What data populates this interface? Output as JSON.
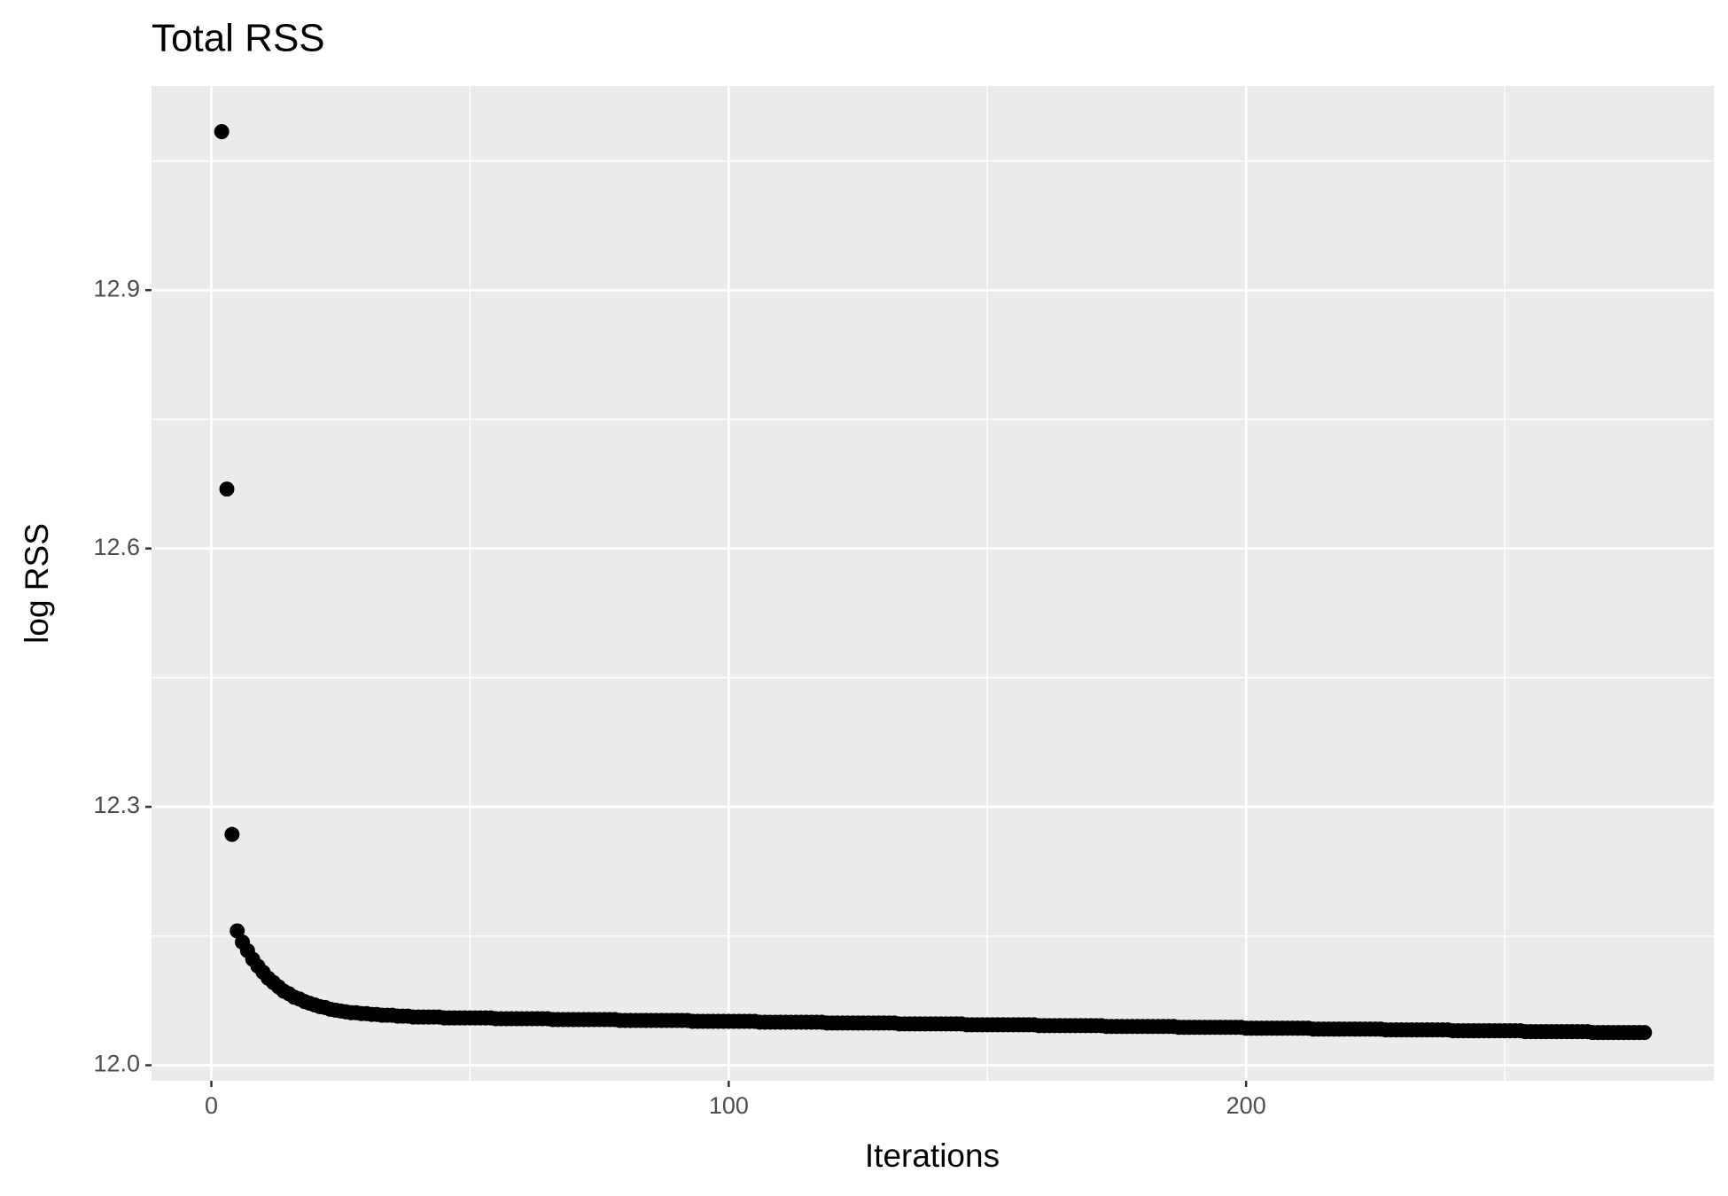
{
  "chart_data": {
    "type": "scatter",
    "title": "Total RSS",
    "x_label": "Iterations",
    "y_label": "log RSS",
    "color": "#000000",
    "panel_color": "#ebebeb",
    "grid": true,
    "xlim": [
      -11.56,
      290.4
    ],
    "ylim": [
      11.982,
      13.137
    ],
    "xticks": [
      0,
      100,
      200
    ],
    "yticks": [
      {
        "value": 12.0,
        "label": "12.0"
      },
      {
        "value": 12.3,
        "label": "12.3"
      },
      {
        "value": 12.6,
        "label": "12.6"
      },
      {
        "value": 12.9,
        "label": "12.9"
      }
    ],
    "minor_xticks": [
      50,
      150,
      250
    ],
    "minor_yticks": [
      12.15,
      12.45,
      12.75,
      13.05
    ],
    "x": [
      2,
      3,
      4,
      5,
      6,
      7,
      8,
      9,
      10,
      11,
      12,
      13,
      14,
      15,
      16,
      17,
      18,
      19,
      20,
      21,
      22,
      23,
      24,
      25,
      26,
      27,
      28,
      29,
      30,
      31,
      32,
      33,
      34,
      35,
      36,
      37,
      38,
      39,
      40,
      41,
      42,
      43,
      44,
      45,
      46,
      47,
      48,
      49,
      50,
      51,
      52,
      53,
      54,
      55,
      56,
      57,
      58,
      59,
      60,
      61,
      62,
      63,
      64,
      65,
      66,
      67,
      68,
      69,
      70,
      71,
      72,
      73,
      74,
      75,
      76,
      77,
      78,
      79,
      80,
      81,
      82,
      83,
      84,
      85,
      86,
      87,
      88,
      89,
      90,
      91,
      92,
      93,
      94,
      95,
      96,
      97,
      98,
      99,
      100,
      101,
      102,
      103,
      104,
      105,
      106,
      107,
      108,
      109,
      110,
      111,
      112,
      113,
      114,
      115,
      116,
      117,
      118,
      119,
      120,
      121,
      122,
      123,
      124,
      125,
      126,
      127,
      128,
      129,
      130,
      131,
      132,
      133,
      134,
      135,
      136,
      137,
      138,
      139,
      140,
      141,
      142,
      143,
      144,
      145,
      146,
      147,
      148,
      149,
      150,
      151,
      152,
      153,
      154,
      155,
      156,
      157,
      158,
      159,
      160,
      161,
      162,
      163,
      164,
      165,
      166,
      167,
      168,
      169,
      170,
      171,
      172,
      173,
      174,
      175,
      176,
      177,
      178,
      179,
      180,
      181,
      182,
      183,
      184,
      185,
      186,
      187,
      188,
      189,
      190,
      191,
      192,
      193,
      194,
      195,
      196,
      197,
      198,
      199,
      200,
      201,
      202,
      203,
      204,
      205,
      206,
      207,
      208,
      209,
      210,
      211,
      212,
      213,
      214,
      215,
      216,
      217,
      218,
      219,
      220,
      221,
      222,
      223,
      224,
      225,
      226,
      227,
      228,
      229,
      230,
      231,
      232,
      233,
      234,
      235,
      236,
      237,
      238,
      239,
      240,
      241,
      242,
      243,
      244,
      245,
      246,
      247,
      248,
      249,
      250,
      251,
      252,
      253,
      254,
      255,
      256,
      257,
      258,
      259,
      260,
      261,
      262,
      263,
      264,
      265,
      266,
      267,
      268,
      269,
      270,
      271,
      272,
      273,
      274,
      275,
      276,
      277
    ],
    "values": [
      13.084,
      12.669,
      12.268,
      12.156,
      12.143,
      12.133,
      12.123,
      12.115,
      12.108,
      12.101,
      12.096,
      12.091,
      12.086,
      12.083,
      12.079,
      12.077,
      12.074,
      12.072,
      12.07,
      12.068,
      12.067,
      12.065,
      12.064,
      12.063,
      12.062,
      12.061,
      12.061,
      12.06,
      12.06,
      12.059,
      12.059,
      12.058,
      12.058,
      12.058,
      12.057,
      12.057,
      12.057,
      12.056,
      12.056,
      12.056,
      12.056,
      12.056,
      12.056,
      12.055,
      12.055,
      12.055,
      12.055,
      12.055,
      12.055,
      12.055,
      12.055,
      12.055,
      12.055,
      12.054,
      12.054,
      12.054,
      12.054,
      12.054,
      12.054,
      12.054,
      12.054,
      12.054,
      12.054,
      12.054,
      12.053,
      12.053,
      12.053,
      12.053,
      12.053,
      12.053,
      12.053,
      12.053,
      12.053,
      12.053,
      12.053,
      12.053,
      12.053,
      12.052,
      12.052,
      12.052,
      12.052,
      12.052,
      12.052,
      12.052,
      12.052,
      12.052,
      12.052,
      12.052,
      12.052,
      12.052,
      12.052,
      12.051,
      12.051,
      12.051,
      12.051,
      12.051,
      12.051,
      12.051,
      12.051,
      12.051,
      12.051,
      12.051,
      12.051,
      12.051,
      12.05,
      12.05,
      12.05,
      12.05,
      12.05,
      12.05,
      12.05,
      12.05,
      12.05,
      12.05,
      12.05,
      12.05,
      12.05,
      12.049,
      12.049,
      12.049,
      12.049,
      12.049,
      12.049,
      12.049,
      12.049,
      12.049,
      12.049,
      12.049,
      12.049,
      12.049,
      12.049,
      12.048,
      12.048,
      12.048,
      12.048,
      12.048,
      12.048,
      12.048,
      12.048,
      12.048,
      12.048,
      12.048,
      12.048,
      12.048,
      12.047,
      12.047,
      12.047,
      12.047,
      12.047,
      12.047,
      12.047,
      12.047,
      12.047,
      12.047,
      12.047,
      12.047,
      12.047,
      12.047,
      12.046,
      12.046,
      12.046,
      12.046,
      12.046,
      12.046,
      12.046,
      12.046,
      12.046,
      12.046,
      12.046,
      12.046,
      12.046,
      12.045,
      12.045,
      12.045,
      12.045,
      12.045,
      12.045,
      12.045,
      12.045,
      12.045,
      12.045,
      12.045,
      12.045,
      12.045,
      12.045,
      12.044,
      12.044,
      12.044,
      12.044,
      12.044,
      12.044,
      12.044,
      12.044,
      12.044,
      12.044,
      12.044,
      12.044,
      12.044,
      12.043,
      12.043,
      12.043,
      12.043,
      12.043,
      12.043,
      12.043,
      12.043,
      12.043,
      12.043,
      12.043,
      12.043,
      12.043,
      12.042,
      12.042,
      12.042,
      12.042,
      12.042,
      12.042,
      12.042,
      12.042,
      12.042,
      12.042,
      12.042,
      12.042,
      12.042,
      12.042,
      12.041,
      12.041,
      12.041,
      12.041,
      12.041,
      12.041,
      12.041,
      12.041,
      12.041,
      12.041,
      12.041,
      12.041,
      12.041,
      12.04,
      12.04,
      12.04,
      12.04,
      12.04,
      12.04,
      12.04,
      12.04,
      12.04,
      12.04,
      12.04,
      12.04,
      12.04,
      12.04,
      12.039,
      12.039,
      12.039,
      12.039,
      12.039,
      12.039,
      12.039,
      12.039,
      12.039,
      12.039,
      12.039,
      12.039,
      12.039,
      12.038,
      12.038,
      12.038,
      12.038,
      12.038,
      12.038,
      12.038,
      12.038,
      12.038,
      12.038,
      12.038
    ]
  }
}
